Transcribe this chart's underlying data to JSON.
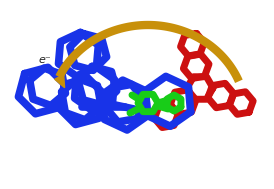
{
  "background_color": "#ffffff",
  "arrow_color": "#C8900A",
  "arrow_text": "e⁻",
  "blue_color": "#1833E8",
  "green_color": "#18CC18",
  "red_color": "#CC1010",
  "fig_width": 2.74,
  "fig_height": 1.89,
  "dpi": 100,
  "blue_lw": 5.5,
  "green_lw": 5.0,
  "red_lw": 5.0,
  "arrow_lw": 6.0
}
